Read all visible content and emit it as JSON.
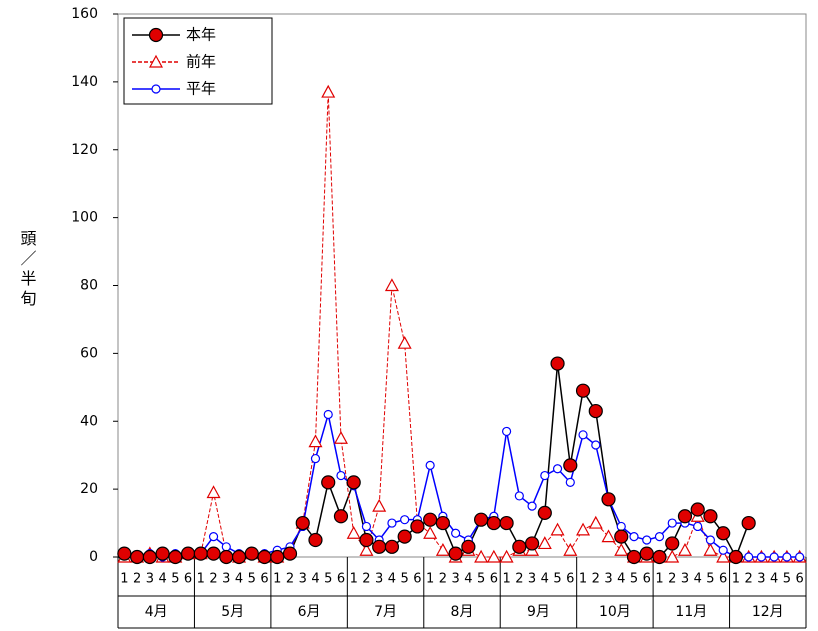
{
  "chart_data": {
    "type": "line",
    "y_label": "頭／半旬",
    "categories": [
      "1",
      "2",
      "3",
      "4",
      "5",
      "6",
      "1",
      "2",
      "3",
      "4",
      "5",
      "6",
      "1",
      "2",
      "3",
      "4",
      "5",
      "6",
      "1",
      "2",
      "3",
      "4",
      "5",
      "6",
      "1",
      "2",
      "3",
      "4",
      "5",
      "6",
      "1",
      "2",
      "3",
      "4",
      "5",
      "6",
      "1",
      "2",
      "3",
      "4",
      "5",
      "6",
      "1",
      "2",
      "3",
      "4",
      "5",
      "6",
      "1",
      "2",
      "3",
      "4",
      "5",
      "6"
    ],
    "groups": [
      "4月",
      "5月",
      "6月",
      "7月",
      "8月",
      "9月",
      "10月",
      "11月",
      "12月"
    ],
    "ylim": [
      0,
      160
    ],
    "yticks": [
      0,
      20,
      40,
      60,
      80,
      100,
      120,
      140,
      160
    ],
    "grid": false,
    "legend": "upper left",
    "series": [
      {
        "name": "本年",
        "color": "#000000",
        "marker": "circle",
        "marker_color": "#e00000",
        "line_style": "solid",
        "values": [
          1,
          0,
          0,
          1,
          0,
          1,
          1,
          1,
          0,
          0,
          1,
          0,
          0,
          1,
          10,
          5,
          22,
          12,
          22,
          5,
          3,
          3,
          6,
          9,
          11,
          10,
          1,
          3,
          11,
          10,
          10,
          3,
          4,
          13,
          57,
          27,
          49,
          43,
          17,
          6,
          0,
          1,
          0,
          4,
          12,
          14,
          12,
          7,
          0,
          10,
          null,
          null,
          null,
          null
        ]
      },
      {
        "name": "前年",
        "color": "#e00000",
        "marker": "triangle",
        "marker_color": "#ffffff",
        "line_style": "dashed",
        "values": [
          0,
          0,
          1,
          0,
          0,
          1,
          1,
          19,
          1,
          0,
          1,
          0,
          0,
          2,
          10,
          34,
          137,
          35,
          7,
          2,
          15,
          80,
          63,
          10,
          7,
          2,
          0,
          2,
          0,
          0,
          0,
          2,
          2,
          4,
          8,
          2,
          8,
          10,
          6,
          2,
          0,
          0,
          0,
          0,
          2,
          12,
          2,
          0,
          0,
          0,
          0,
          0,
          0,
          0
        ]
      },
      {
        "name": "平年",
        "color": "#0000ff",
        "marker": "circle-small",
        "marker_color": "#ffffff",
        "line_style": "solid",
        "values": [
          1,
          0,
          1,
          0,
          1,
          1,
          1,
          6,
          3,
          1,
          1,
          1,
          2,
          3,
          9,
          29,
          42,
          24,
          21,
          9,
          5,
          10,
          11,
          11,
          27,
          12,
          7,
          5,
          11,
          12,
          37,
          18,
          15,
          24,
          26,
          22,
          36,
          33,
          17,
          9,
          6,
          5,
          6,
          10,
          10,
          9,
          5,
          2,
          0,
          0,
          0,
          0,
          0,
          0
        ]
      }
    ]
  }
}
